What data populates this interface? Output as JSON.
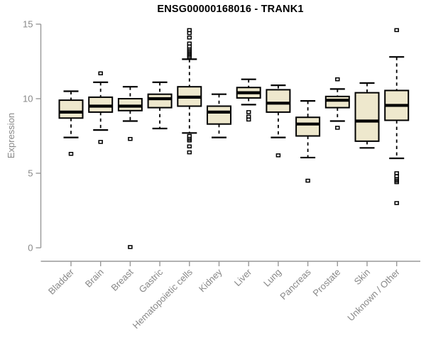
{
  "chart_data": {
    "type": "boxplot",
    "title": "ENSG00000168016 - TRANK1",
    "ylabel": "Expression",
    "xlabel": "",
    "ylim": [
      0,
      15
    ],
    "yticks": [
      0,
      5,
      10,
      15
    ],
    "grid": false,
    "legend": "none",
    "box_fill_color": "#EEE8CD",
    "box_border_color": "#000000",
    "axis_color": "#999999",
    "tick_label_color": "#888888",
    "categories": [
      "Bladder",
      "Brain",
      "Breast",
      "Gastric",
      "Hematopoietic cells",
      "Kidney",
      "Liver",
      "Lung",
      "Pancreas",
      "Prostate",
      "Skin",
      "Unknown / Other"
    ],
    "series": [
      {
        "name": "Bladder",
        "whisker_low": 7.4,
        "q1": 8.7,
        "median": 9.1,
        "q3": 9.9,
        "whisker_high": 10.5,
        "outliers": [
          6.3
        ]
      },
      {
        "name": "Brain",
        "whisker_low": 7.9,
        "q1": 9.1,
        "median": 9.5,
        "q3": 10.1,
        "whisker_high": 11.1,
        "outliers": [
          11.7,
          7.1
        ]
      },
      {
        "name": "Breast",
        "whisker_low": 8.5,
        "q1": 9.2,
        "median": 9.5,
        "q3": 10.0,
        "whisker_high": 10.8,
        "outliers": [
          7.3,
          0.05
        ]
      },
      {
        "name": "Gastric",
        "whisker_low": 8.0,
        "q1": 9.4,
        "median": 10.0,
        "q3": 10.3,
        "whisker_high": 11.1,
        "outliers": []
      },
      {
        "name": "Hematopoietic cells",
        "whisker_low": 7.7,
        "q1": 9.5,
        "median": 10.1,
        "q3": 10.8,
        "whisker_high": 12.65,
        "outliers": [
          14.6,
          14.4,
          14.1,
          13.7,
          13.5,
          13.3,
          13.2,
          13.1,
          13.0,
          12.9,
          12.8,
          7.5,
          7.3,
          7.2,
          6.8,
          6.4
        ]
      },
      {
        "name": "Kidney",
        "whisker_low": 7.4,
        "q1": 8.3,
        "median": 9.1,
        "q3": 9.5,
        "whisker_high": 10.3,
        "outliers": []
      },
      {
        "name": "Liver",
        "whisker_low": 9.6,
        "q1": 10.05,
        "median": 10.4,
        "q3": 10.75,
        "whisker_high": 11.3,
        "outliers": [
          9.1,
          8.8,
          8.6
        ]
      },
      {
        "name": "Lung",
        "whisker_low": 7.4,
        "q1": 9.1,
        "median": 9.7,
        "q3": 10.6,
        "whisker_high": 10.9,
        "outliers": [
          6.2
        ]
      },
      {
        "name": "Pancreas",
        "whisker_low": 6.05,
        "q1": 7.5,
        "median": 8.3,
        "q3": 8.75,
        "whisker_high": 9.85,
        "outliers": [
          4.5
        ]
      },
      {
        "name": "Prostate",
        "whisker_low": 8.5,
        "q1": 9.4,
        "median": 9.9,
        "q3": 10.15,
        "whisker_high": 10.65,
        "outliers": [
          11.3,
          8.05
        ]
      },
      {
        "name": "Skin",
        "whisker_low": 6.7,
        "q1": 7.15,
        "median": 8.5,
        "q3": 10.4,
        "whisker_high": 11.05,
        "outliers": []
      },
      {
        "name": "Unknown / Other",
        "whisker_low": 6.0,
        "q1": 8.55,
        "median": 9.55,
        "q3": 10.55,
        "whisker_high": 12.8,
        "outliers": [
          14.6,
          5.0,
          4.8,
          4.6,
          4.5,
          4.4,
          3.0
        ]
      }
    ]
  }
}
